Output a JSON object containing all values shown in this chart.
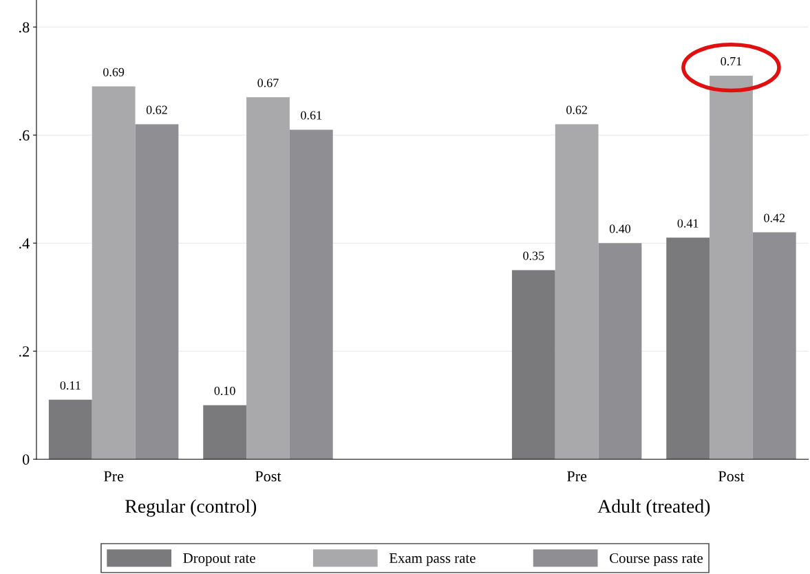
{
  "chart_data": {
    "type": "bar",
    "categories": [
      "Pre",
      "Post",
      null,
      "Pre",
      "Post"
    ],
    "series": [
      {
        "name": "Dropout rate",
        "color": "#7a7a7c",
        "values": [
          0.11,
          0.1,
          null,
          0.35,
          0.41
        ],
        "value_labels": [
          "0.11",
          "0.10",
          null,
          "0.35",
          "0.41"
        ]
      },
      {
        "name": "Exam pass rate",
        "color": "#a9a9ab",
        "values": [
          0.69,
          0.67,
          null,
          0.62,
          0.71
        ],
        "value_labels": [
          "0.69",
          "0.67",
          null,
          "0.62",
          "0.71"
        ]
      },
      {
        "name": "Course pass rate",
        "color": "#8f8f93",
        "values": [
          0.62,
          0.61,
          null,
          0.4,
          0.42
        ],
        "value_labels": [
          "0.62",
          "0.61",
          null,
          "0.40",
          "0.42"
        ]
      }
    ],
    "annotations": [
      "Regular (control)",
      "Adult (treated)"
    ],
    "ylim": [
      0,
      0.85
    ],
    "yticks": [
      0,
      {
        "value": 0.2,
        "label": ".2"
      },
      {
        "value": 0.4,
        "label": ".4"
      },
      {
        "value": 0.6,
        "label": ".6"
      },
      {
        "value": 0.8,
        "label": ".8"
      }
    ],
    "grid": "y",
    "legend": "bottom"
  }
}
